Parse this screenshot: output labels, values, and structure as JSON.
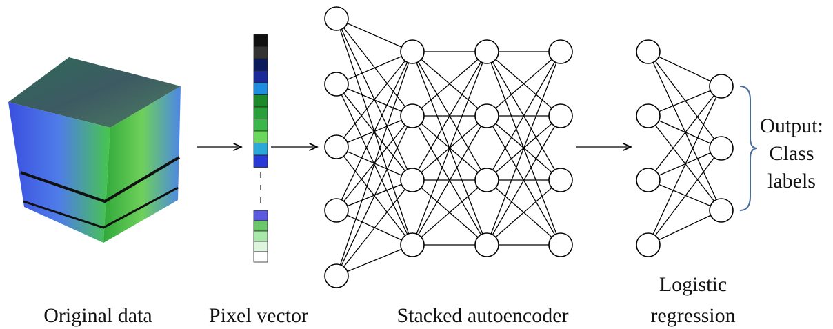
{
  "labels": {
    "original_data": "Original data",
    "pixel_vector": "Pixel vector",
    "stacked_autoencoder": "Stacked autoencoder",
    "logistic_regression": [
      "Logistic",
      "regression"
    ],
    "output": [
      "Output:",
      "Class",
      "labels"
    ]
  }
}
